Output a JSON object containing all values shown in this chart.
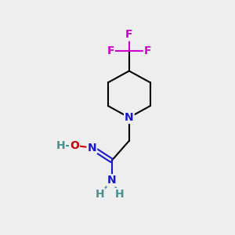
{
  "background_color": "#eeeeee",
  "atom_colors": {
    "C": "#000000",
    "N": "#1919cc",
    "O": "#cc0000",
    "F": "#cc00cc",
    "H": "#4a9090"
  },
  "figsize": [
    3.0,
    3.0
  ],
  "dpi": 100
}
